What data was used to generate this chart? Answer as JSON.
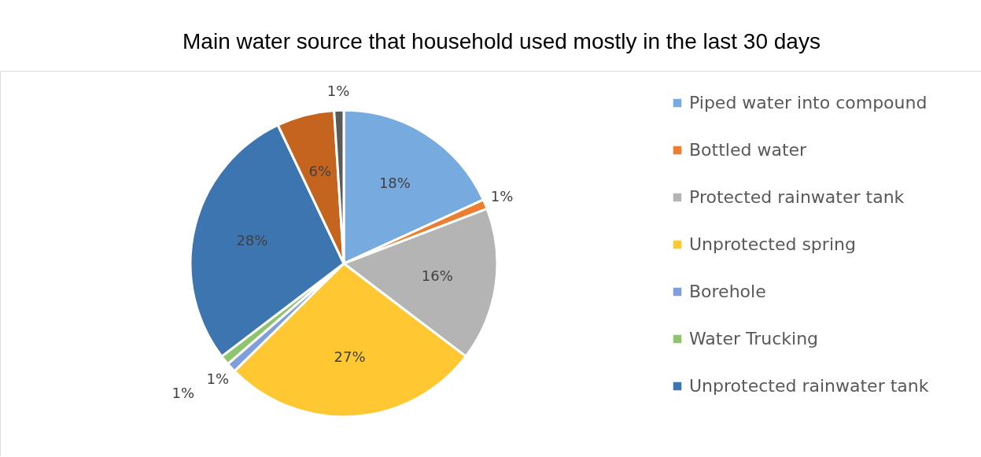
{
  "chart_data": {
    "type": "pie",
    "title": "Main water source that household used mostly in the last 30 days",
    "categories": [
      "Piped water into compound",
      "Bottled water",
      "Protected rainwater tank",
      "Unprotected spring",
      "Borehole",
      "Water Trucking",
      "Unprotected rainwater tank",
      null,
      null
    ],
    "values": [
      18,
      1,
      16,
      27,
      1,
      1,
      28,
      6,
      1
    ],
    "value_labels": [
      "18%",
      "1%",
      "16%",
      "27%",
      "1%",
      "1%",
      "28%",
      "6%",
      "1%"
    ],
    "colors": [
      "#77aadf",
      "#ed7d31",
      "#b4b4b4",
      "#ffc832",
      "#7f9fdc",
      "#8dc46c",
      "#3d75b0",
      "#c4641f",
      "#5a5a5a"
    ],
    "legend": "right"
  }
}
